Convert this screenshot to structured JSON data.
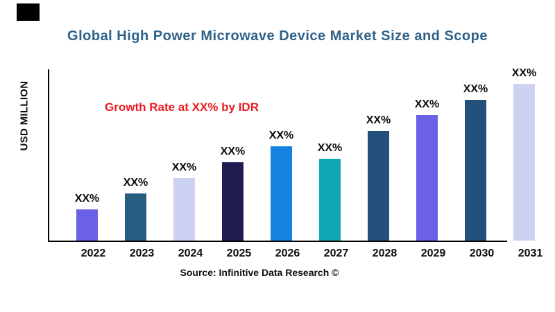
{
  "title": "Global High Power Microwave Device Market Size and Scope",
  "annotation": "Growth Rate at XX% by IDR",
  "y_axis_label": "USD MILLION",
  "source_text": "Source: Infinitive Data Research ©",
  "colors": {
    "title": "#2e6189",
    "annotation": "#ea1b22",
    "axis": "#000000",
    "labels": "#0d0d0d",
    "background": "#ffffff"
  },
  "chart_data": {
    "type": "bar",
    "title": "Global High Power Microwave Device Market Size and Scope",
    "categories": [
      "2022",
      "2023",
      "2024",
      "2025",
      "2026",
      "2027",
      "2028",
      "2029",
      "2030",
      "2031"
    ],
    "values": [
      20,
      30,
      40,
      50,
      60,
      52,
      70,
      80,
      90,
      100
    ],
    "value_basis": "relative bar height, tallest bar (2031) = 100; numeric figures masked as XX% in chart",
    "bar_labels": [
      "XX%",
      "XX%",
      "XX%",
      "XX%",
      "XX%",
      "XX%",
      "XX%",
      "XX%",
      "XX%",
      "XX%"
    ],
    "bar_colors": [
      "#6b61e6",
      "#255e81",
      "#cdd1f2",
      "#201c52",
      "#1582e2",
      "#10a7b5",
      "#24507c",
      "#6b61e6",
      "#24507c",
      "#cdd1f2"
    ],
    "xlabel": "",
    "ylabel": "USD MILLION",
    "ylim": [
      0,
      100
    ],
    "grid": false,
    "legend": false
  }
}
